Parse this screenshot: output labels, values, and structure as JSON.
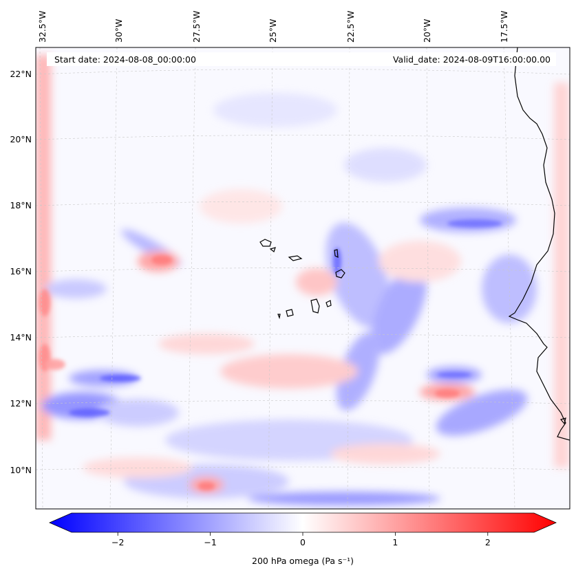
{
  "header": {
    "start_date": "Start date: 2024-08-08_00:00:00",
    "valid_date": "Valid_date: 2024-08-09T16:00:00.00"
  },
  "map": {
    "longitude_labels": [
      "32.5°W",
      "30°W",
      "27.5°W",
      "25°W",
      "22.5°W",
      "20°W",
      "17.5°W"
    ],
    "latitude_labels": [
      "22°N",
      "20°N",
      "18°N",
      "16°N",
      "14°N",
      "12°N",
      "10°N"
    ],
    "gridlines": true
  },
  "colorbar": {
    "label": "200 hPa omega (Pa s⁻¹)",
    "ticks": [
      "−2",
      "−1",
      "0",
      "1",
      "2"
    ],
    "tick_values": [
      -2,
      -1,
      0,
      1,
      2
    ],
    "vmin": -2.7,
    "vmax": 2.7,
    "colormap": "bwr",
    "colors": {
      "low": "#0000ff",
      "mid": "#ffffff",
      "high": "#ff0000"
    }
  }
}
